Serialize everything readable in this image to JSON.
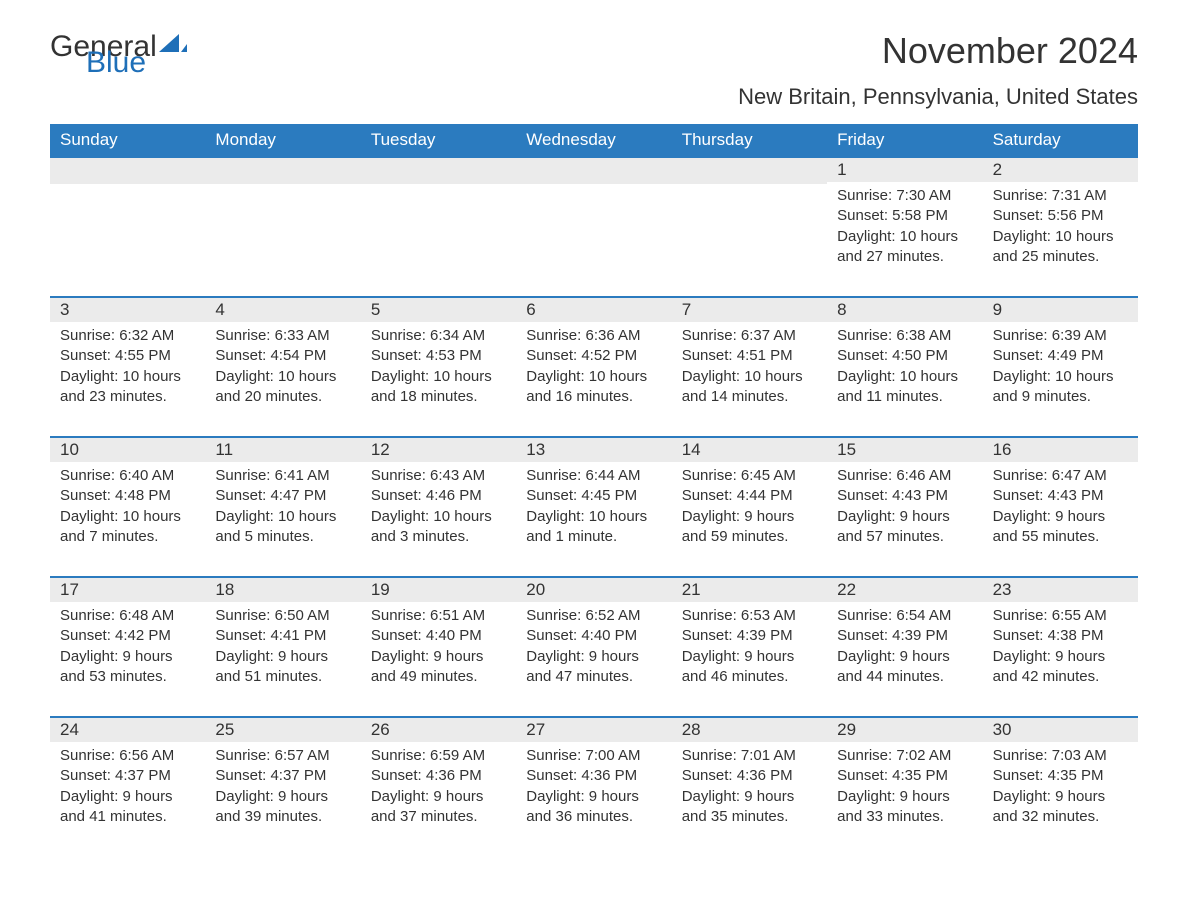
{
  "logo": {
    "word1": "General",
    "word2": "Blue",
    "color1": "#333333",
    "color2": "#1e6fb8",
    "sail_color": "#1e6fb8"
  },
  "title": "November 2024",
  "location": "New Britain, Pennsylvania, United States",
  "colors": {
    "header_bg": "#2b7bbf",
    "header_text": "#ffffff",
    "row_border": "#2b7bbf",
    "daynum_bg": "#ebebeb",
    "body_text": "#333333",
    "page_bg": "#ffffff"
  },
  "weekdays": [
    "Sunday",
    "Monday",
    "Tuesday",
    "Wednesday",
    "Thursday",
    "Friday",
    "Saturday"
  ],
  "weeks": [
    [
      {
        "empty": true
      },
      {
        "empty": true
      },
      {
        "empty": true
      },
      {
        "empty": true
      },
      {
        "empty": true
      },
      {
        "day": "1",
        "sunrise": "Sunrise: 7:30 AM",
        "sunset": "Sunset: 5:58 PM",
        "daylight": "Daylight: 10 hours and 27 minutes."
      },
      {
        "day": "2",
        "sunrise": "Sunrise: 7:31 AM",
        "sunset": "Sunset: 5:56 PM",
        "daylight": "Daylight: 10 hours and 25 minutes."
      }
    ],
    [
      {
        "day": "3",
        "sunrise": "Sunrise: 6:32 AM",
        "sunset": "Sunset: 4:55 PM",
        "daylight": "Daylight: 10 hours and 23 minutes."
      },
      {
        "day": "4",
        "sunrise": "Sunrise: 6:33 AM",
        "sunset": "Sunset: 4:54 PM",
        "daylight": "Daylight: 10 hours and 20 minutes."
      },
      {
        "day": "5",
        "sunrise": "Sunrise: 6:34 AM",
        "sunset": "Sunset: 4:53 PM",
        "daylight": "Daylight: 10 hours and 18 minutes."
      },
      {
        "day": "6",
        "sunrise": "Sunrise: 6:36 AM",
        "sunset": "Sunset: 4:52 PM",
        "daylight": "Daylight: 10 hours and 16 minutes."
      },
      {
        "day": "7",
        "sunrise": "Sunrise: 6:37 AM",
        "sunset": "Sunset: 4:51 PM",
        "daylight": "Daylight: 10 hours and 14 minutes."
      },
      {
        "day": "8",
        "sunrise": "Sunrise: 6:38 AM",
        "sunset": "Sunset: 4:50 PM",
        "daylight": "Daylight: 10 hours and 11 minutes."
      },
      {
        "day": "9",
        "sunrise": "Sunrise: 6:39 AM",
        "sunset": "Sunset: 4:49 PM",
        "daylight": "Daylight: 10 hours and 9 minutes."
      }
    ],
    [
      {
        "day": "10",
        "sunrise": "Sunrise: 6:40 AM",
        "sunset": "Sunset: 4:48 PM",
        "daylight": "Daylight: 10 hours and 7 minutes."
      },
      {
        "day": "11",
        "sunrise": "Sunrise: 6:41 AM",
        "sunset": "Sunset: 4:47 PM",
        "daylight": "Daylight: 10 hours and 5 minutes."
      },
      {
        "day": "12",
        "sunrise": "Sunrise: 6:43 AM",
        "sunset": "Sunset: 4:46 PM",
        "daylight": "Daylight: 10 hours and 3 minutes."
      },
      {
        "day": "13",
        "sunrise": "Sunrise: 6:44 AM",
        "sunset": "Sunset: 4:45 PM",
        "daylight": "Daylight: 10 hours and 1 minute."
      },
      {
        "day": "14",
        "sunrise": "Sunrise: 6:45 AM",
        "sunset": "Sunset: 4:44 PM",
        "daylight": "Daylight: 9 hours and 59 minutes."
      },
      {
        "day": "15",
        "sunrise": "Sunrise: 6:46 AM",
        "sunset": "Sunset: 4:43 PM",
        "daylight": "Daylight: 9 hours and 57 minutes."
      },
      {
        "day": "16",
        "sunrise": "Sunrise: 6:47 AM",
        "sunset": "Sunset: 4:43 PM",
        "daylight": "Daylight: 9 hours and 55 minutes."
      }
    ],
    [
      {
        "day": "17",
        "sunrise": "Sunrise: 6:48 AM",
        "sunset": "Sunset: 4:42 PM",
        "daylight": "Daylight: 9 hours and 53 minutes."
      },
      {
        "day": "18",
        "sunrise": "Sunrise: 6:50 AM",
        "sunset": "Sunset: 4:41 PM",
        "daylight": "Daylight: 9 hours and 51 minutes."
      },
      {
        "day": "19",
        "sunrise": "Sunrise: 6:51 AM",
        "sunset": "Sunset: 4:40 PM",
        "daylight": "Daylight: 9 hours and 49 minutes."
      },
      {
        "day": "20",
        "sunrise": "Sunrise: 6:52 AM",
        "sunset": "Sunset: 4:40 PM",
        "daylight": "Daylight: 9 hours and 47 minutes."
      },
      {
        "day": "21",
        "sunrise": "Sunrise: 6:53 AM",
        "sunset": "Sunset: 4:39 PM",
        "daylight": "Daylight: 9 hours and 46 minutes."
      },
      {
        "day": "22",
        "sunrise": "Sunrise: 6:54 AM",
        "sunset": "Sunset: 4:39 PM",
        "daylight": "Daylight: 9 hours and 44 minutes."
      },
      {
        "day": "23",
        "sunrise": "Sunrise: 6:55 AM",
        "sunset": "Sunset: 4:38 PM",
        "daylight": "Daylight: 9 hours and 42 minutes."
      }
    ],
    [
      {
        "day": "24",
        "sunrise": "Sunrise: 6:56 AM",
        "sunset": "Sunset: 4:37 PM",
        "daylight": "Daylight: 9 hours and 41 minutes."
      },
      {
        "day": "25",
        "sunrise": "Sunrise: 6:57 AM",
        "sunset": "Sunset: 4:37 PM",
        "daylight": "Daylight: 9 hours and 39 minutes."
      },
      {
        "day": "26",
        "sunrise": "Sunrise: 6:59 AM",
        "sunset": "Sunset: 4:36 PM",
        "daylight": "Daylight: 9 hours and 37 minutes."
      },
      {
        "day": "27",
        "sunrise": "Sunrise: 7:00 AM",
        "sunset": "Sunset: 4:36 PM",
        "daylight": "Daylight: 9 hours and 36 minutes."
      },
      {
        "day": "28",
        "sunrise": "Sunrise: 7:01 AM",
        "sunset": "Sunset: 4:36 PM",
        "daylight": "Daylight: 9 hours and 35 minutes."
      },
      {
        "day": "29",
        "sunrise": "Sunrise: 7:02 AM",
        "sunset": "Sunset: 4:35 PM",
        "daylight": "Daylight: 9 hours and 33 minutes."
      },
      {
        "day": "30",
        "sunrise": "Sunrise: 7:03 AM",
        "sunset": "Sunset: 4:35 PM",
        "daylight": "Daylight: 9 hours and 32 minutes."
      }
    ]
  ]
}
